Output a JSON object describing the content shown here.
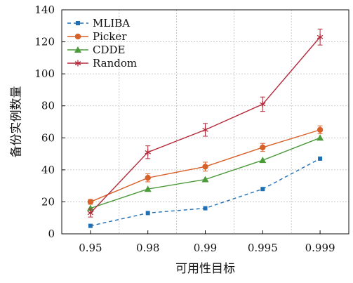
{
  "chart_data": {
    "type": "line",
    "title": "",
    "xlabel": "可用性目标",
    "ylabel": "备份实例数量",
    "categories": [
      "0.95",
      "0.98",
      "0.99",
      "0.995",
      "0.999"
    ],
    "ylim": [
      0,
      140
    ],
    "yticks": [
      0,
      20,
      40,
      60,
      80,
      100,
      120,
      140
    ],
    "grid": true,
    "legend_position": "top-left",
    "series": [
      {
        "name": "MLIBA",
        "values": [
          5,
          13,
          16,
          28,
          47
        ],
        "color": "#1f6fb4",
        "marker": "square",
        "line_style": "dashed"
      },
      {
        "name": "Picker",
        "values": [
          20,
          35,
          42,
          54,
          65
        ],
        "error": [
          1.5,
          2.5,
          2.8,
          2.5,
          2.5
        ],
        "color": "#d8612a",
        "marker": "circle",
        "line_style": "solid"
      },
      {
        "name": "CDDE",
        "values": [
          16,
          28,
          34,
          46,
          60
        ],
        "color": "#4b9b3a",
        "marker": "triangle",
        "line_style": "solid"
      },
      {
        "name": "Random",
        "values": [
          13,
          51,
          65,
          81,
          123
        ],
        "error": [
          2.5,
          4,
          4,
          4.5,
          5
        ],
        "color": "#b32a3a",
        "marker": "star",
        "line_style": "solid"
      }
    ]
  }
}
